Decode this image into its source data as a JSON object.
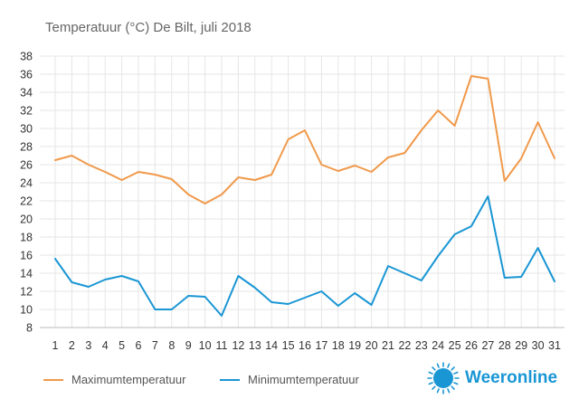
{
  "chart_data": {
    "type": "line",
    "title": "Temperatuur (°C)  De Bilt, juli 2018",
    "x": [
      1,
      2,
      3,
      4,
      5,
      6,
      7,
      8,
      9,
      10,
      11,
      12,
      13,
      14,
      15,
      16,
      17,
      18,
      19,
      20,
      21,
      22,
      23,
      24,
      25,
      26,
      27,
      28,
      29,
      30,
      31
    ],
    "ylim": [
      8,
      38
    ],
    "yticks": [
      8,
      10,
      12,
      14,
      16,
      18,
      20,
      22,
      24,
      26,
      28,
      30,
      32,
      34,
      36,
      38
    ],
    "grid": true,
    "legend_position": "bottom-left",
    "series": [
      {
        "name": "Maximumtemperatuur",
        "color": "#f0994a",
        "values": [
          26.5,
          27.0,
          26.0,
          25.2,
          24.3,
          25.2,
          24.9,
          24.4,
          22.7,
          21.7,
          22.7,
          24.6,
          24.3,
          24.9,
          28.8,
          29.8,
          26.0,
          25.3,
          25.9,
          25.2,
          26.8,
          27.3,
          29.8,
          32.0,
          30.3,
          35.8,
          35.5,
          24.2,
          26.7,
          30.7,
          26.7
        ]
      },
      {
        "name": "Minimumtemperatuur",
        "color": "#1a96d4",
        "values": [
          15.6,
          13.0,
          12.5,
          13.3,
          13.7,
          13.1,
          10.0,
          10.0,
          11.5,
          11.4,
          9.3,
          13.7,
          12.4,
          10.8,
          10.6,
          11.3,
          12.0,
          10.4,
          11.8,
          10.5,
          14.8,
          14.0,
          13.2,
          15.9,
          18.3,
          19.2,
          22.5,
          13.5,
          13.6,
          16.8,
          13.1
        ]
      }
    ]
  },
  "brand": {
    "name": "Weeronline",
    "icon": "sun-icon",
    "color": "#1a96d4"
  }
}
